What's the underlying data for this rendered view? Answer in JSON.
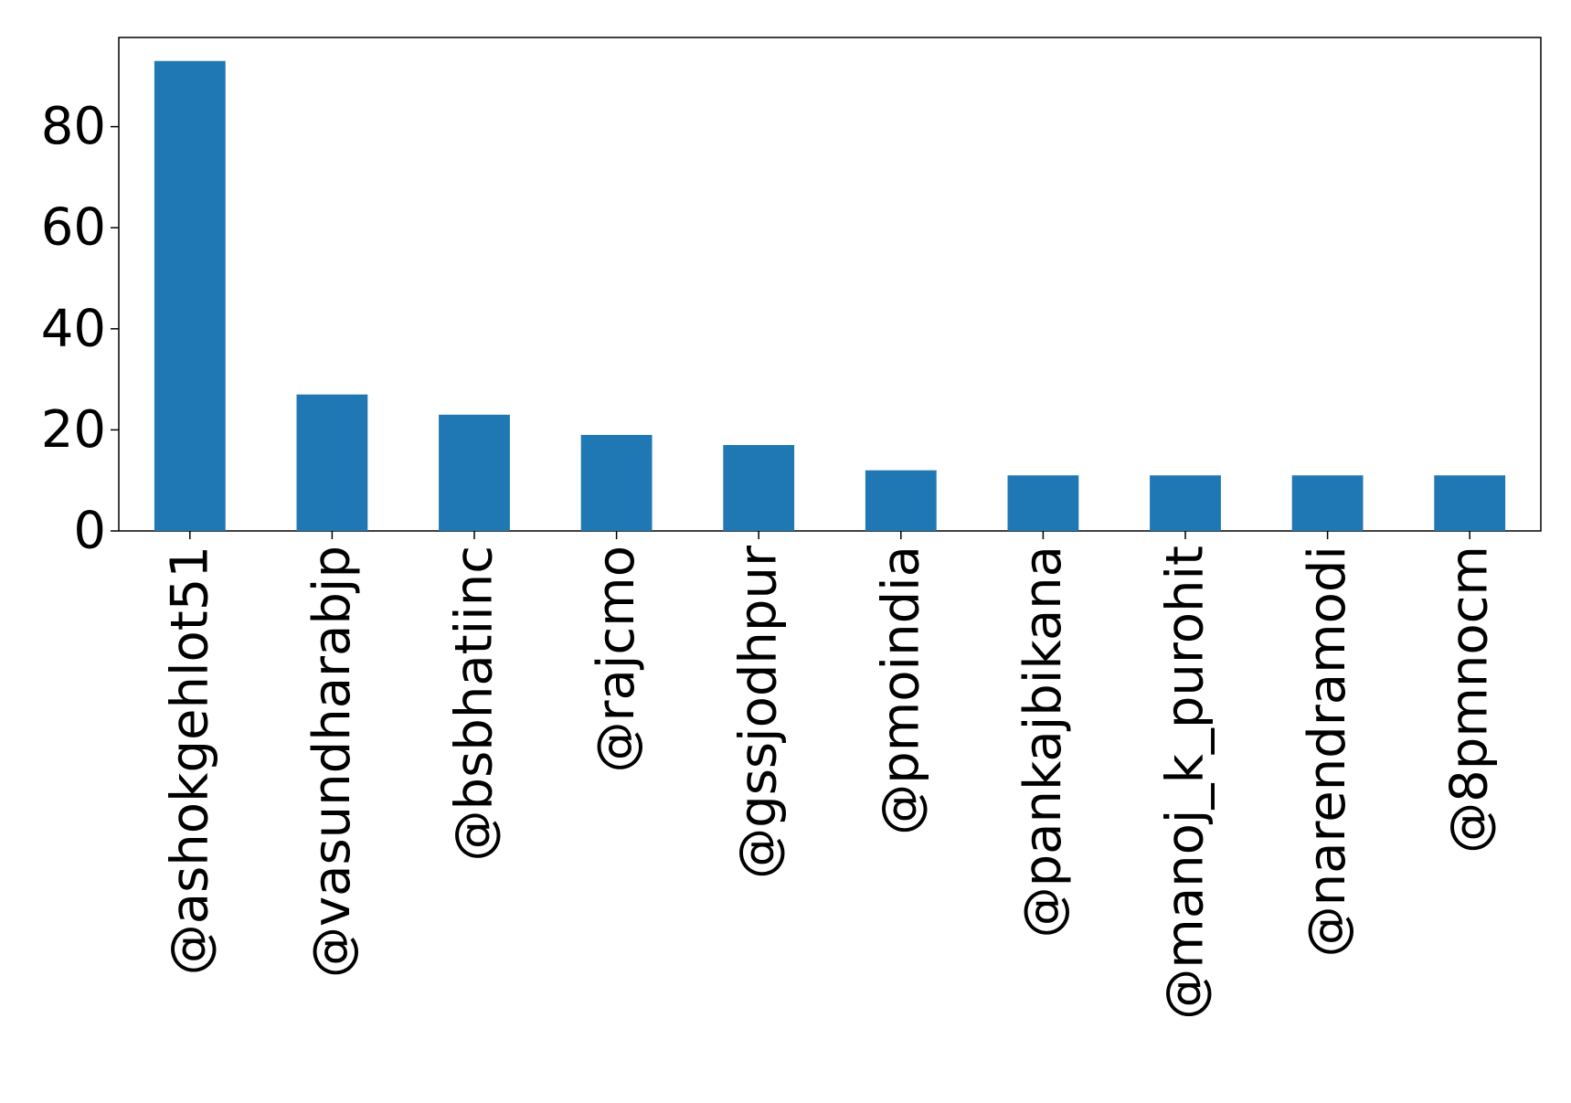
{
  "chart_data": {
    "type": "bar",
    "title": "",
    "xlabel": "",
    "ylabel": "",
    "categories": [
      "@ashokgehlot51",
      "@vasundharabjp",
      "@bsbhatiinc",
      "@rajcmo",
      "@gssjodhpur",
      "@pmoindia",
      "@pankajbikana",
      "@manoj_k_purohit",
      "@narendramodi",
      "@8pmnocm"
    ],
    "values": [
      93,
      27,
      23,
      19,
      17,
      12,
      11,
      11,
      11,
      11
    ],
    "ylim": [
      0,
      97.65
    ],
    "yticks": [
      0,
      20,
      40,
      60,
      80
    ],
    "grid": false,
    "legend": "none",
    "bar_color": "#1f77b4"
  }
}
